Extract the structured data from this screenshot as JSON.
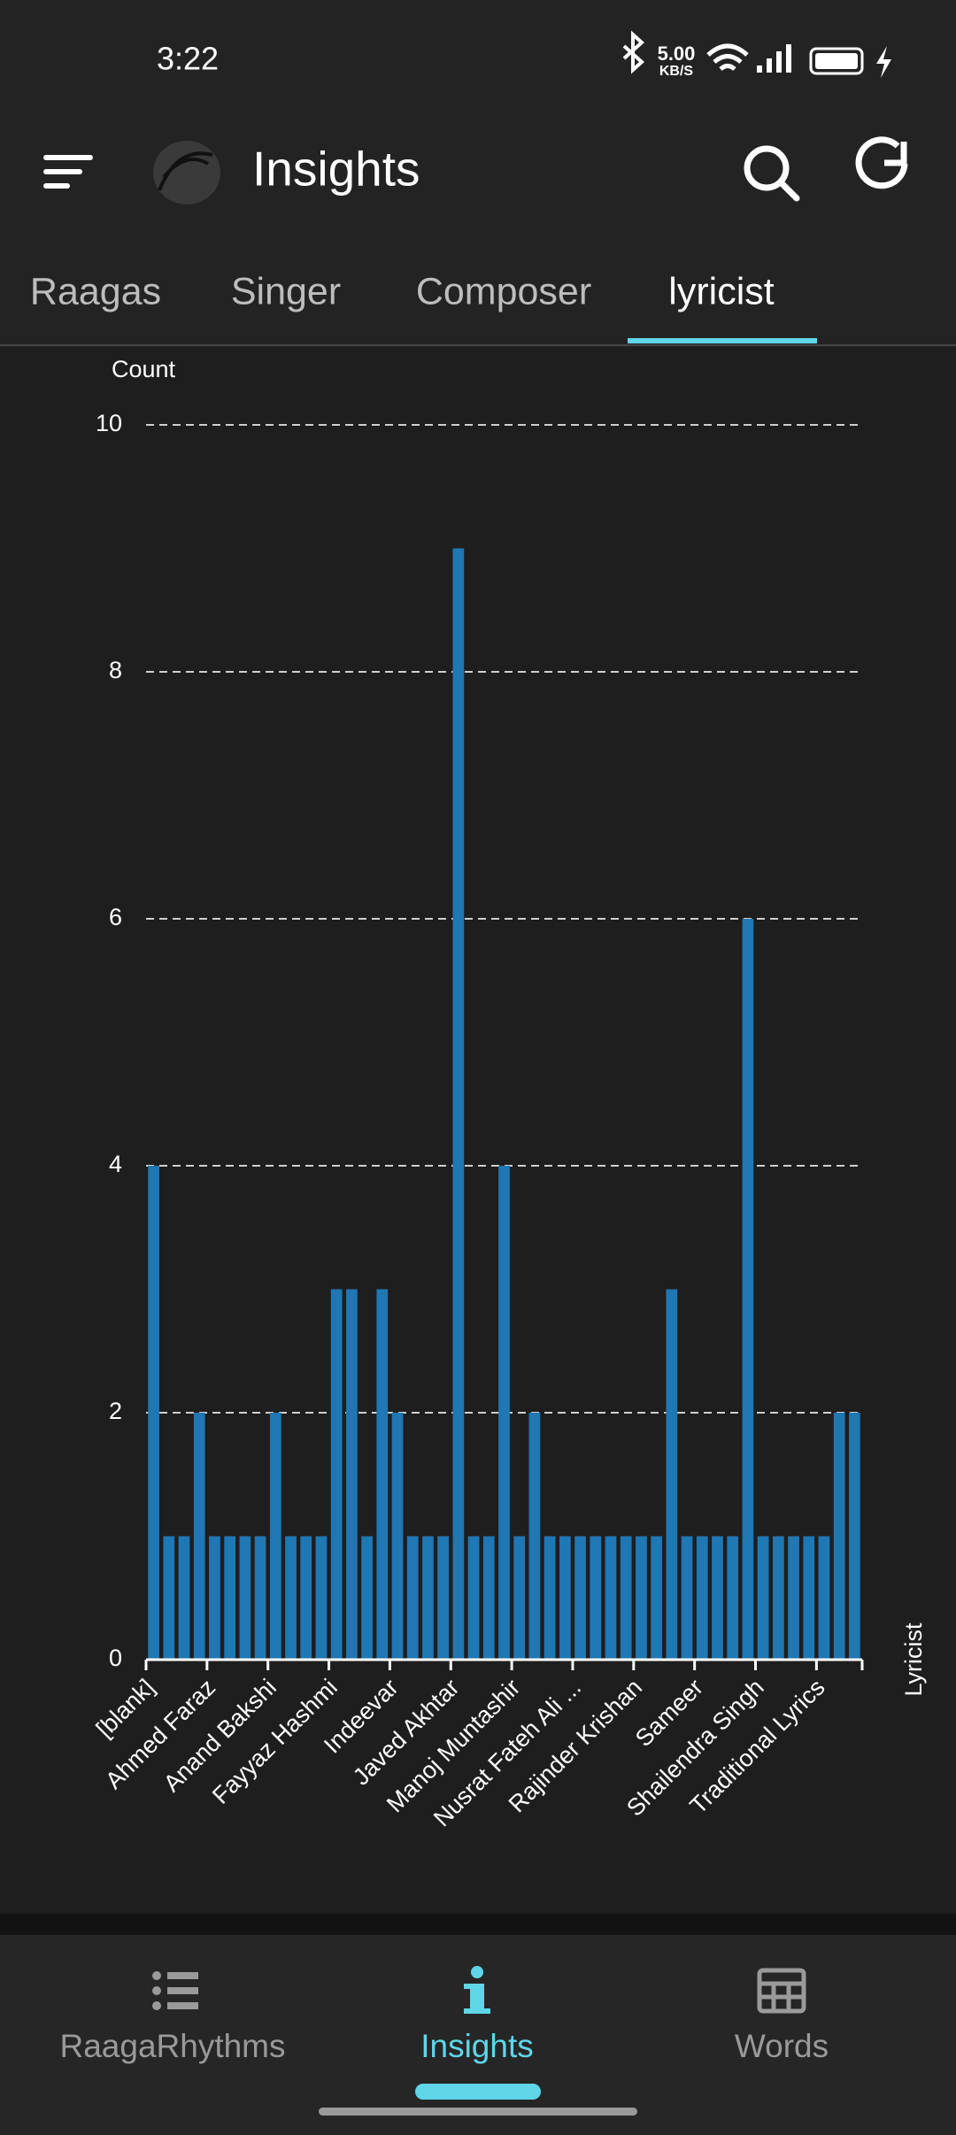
{
  "status_bar": {
    "time": "3:22",
    "speed": "5.00",
    "speed_unit": "KB/S"
  },
  "app_bar": {
    "title": "Insights"
  },
  "tabs": [
    "Raagas",
    "Singer",
    "Composer",
    "lyricist"
  ],
  "chart_data": {
    "type": "bar",
    "y_label": "Count",
    "x_label": "Lyricist",
    "color": "#1f77b4",
    "categories": [
      "[blank]",
      null,
      null,
      null,
      "Ahmed Faraz",
      null,
      null,
      null,
      "Anand Bakshi",
      null,
      null,
      null,
      "Fayyaz Hashmi",
      null,
      null,
      null,
      "Indeevar",
      null,
      null,
      null,
      "Javed Akhtar",
      null,
      null,
      null,
      "Manoj Muntashir",
      null,
      null,
      null,
      "Nusrat Fateh Ali ...",
      null,
      null,
      null,
      "Rajinder Krishan",
      null,
      null,
      null,
      "Sameer",
      null,
      null,
      null,
      "Shailendra Singh",
      null,
      null,
      null,
      "Traditional Lyrics",
      null,
      null
    ],
    "values": [
      4,
      1,
      1,
      2,
      1,
      1,
      1,
      1,
      2,
      1,
      1,
      1,
      3,
      3,
      1,
      3,
      2,
      1,
      1,
      1,
      9,
      1,
      1,
      4,
      1,
      2,
      1,
      1,
      1,
      1,
      1,
      1,
      1,
      1,
      3,
      1,
      1,
      1,
      1,
      6,
      1,
      1,
      1,
      1,
      1,
      2,
      2
    ],
    "ylim": [
      0,
      10
    ],
    "yticks": [
      0,
      2,
      4,
      6,
      8,
      10
    ],
    "grid": true
  },
  "bottom_nav": [
    "RaagaRhythms",
    "Insights",
    "Words"
  ]
}
